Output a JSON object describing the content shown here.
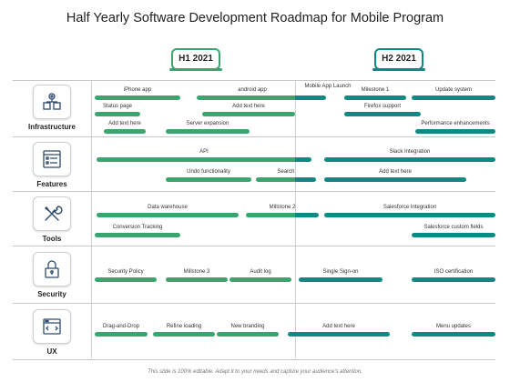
{
  "title": "Half Yearly Software Development Roadmap for Mobile Program",
  "periods": [
    {
      "label": "H1 2021"
    },
    {
      "label": "H2 2021"
    }
  ],
  "categories": [
    {
      "label": "Infrastructure",
      "icon": "gears-cube-icon"
    },
    {
      "label": "Features",
      "icon": "feature-list-icon"
    },
    {
      "label": "Tools",
      "icon": "wrench-screwdriver-icon"
    },
    {
      "label": "Security",
      "icon": "padlock-icon"
    },
    {
      "label": "UX",
      "icon": "browser-window-icon"
    }
  ],
  "tasks": {
    "infrastructure": [
      "iPhone app",
      "android app",
      "Mobile App Launch",
      "Milestone 1",
      "Update system",
      "Status page",
      "Add text here",
      "Firefox support",
      "Add text here",
      "Server expansion",
      "Performance enhancements"
    ],
    "features": [
      "API",
      "Slack Integration",
      "Undo functionality",
      "Search",
      "Add text here"
    ],
    "tools": [
      "Data warehouse",
      "Millstone 2",
      "Salesforce Integration",
      "Conversion Tracking",
      "Salesforce custom fields"
    ],
    "security": [
      "Security Policy",
      "Millstone 3",
      "Audit log",
      "Single Sign-on",
      "ISO certification"
    ],
    "ux": [
      "Drag-and-Drop",
      "Refine loading",
      "New branding",
      "Add text here",
      "Menu updates"
    ]
  },
  "colors": {
    "h1": "#3aa56f",
    "h2": "#0d8a84"
  },
  "footer": "This slide is 100% editable. Adapt it to your needs and capture your audience's attention."
}
